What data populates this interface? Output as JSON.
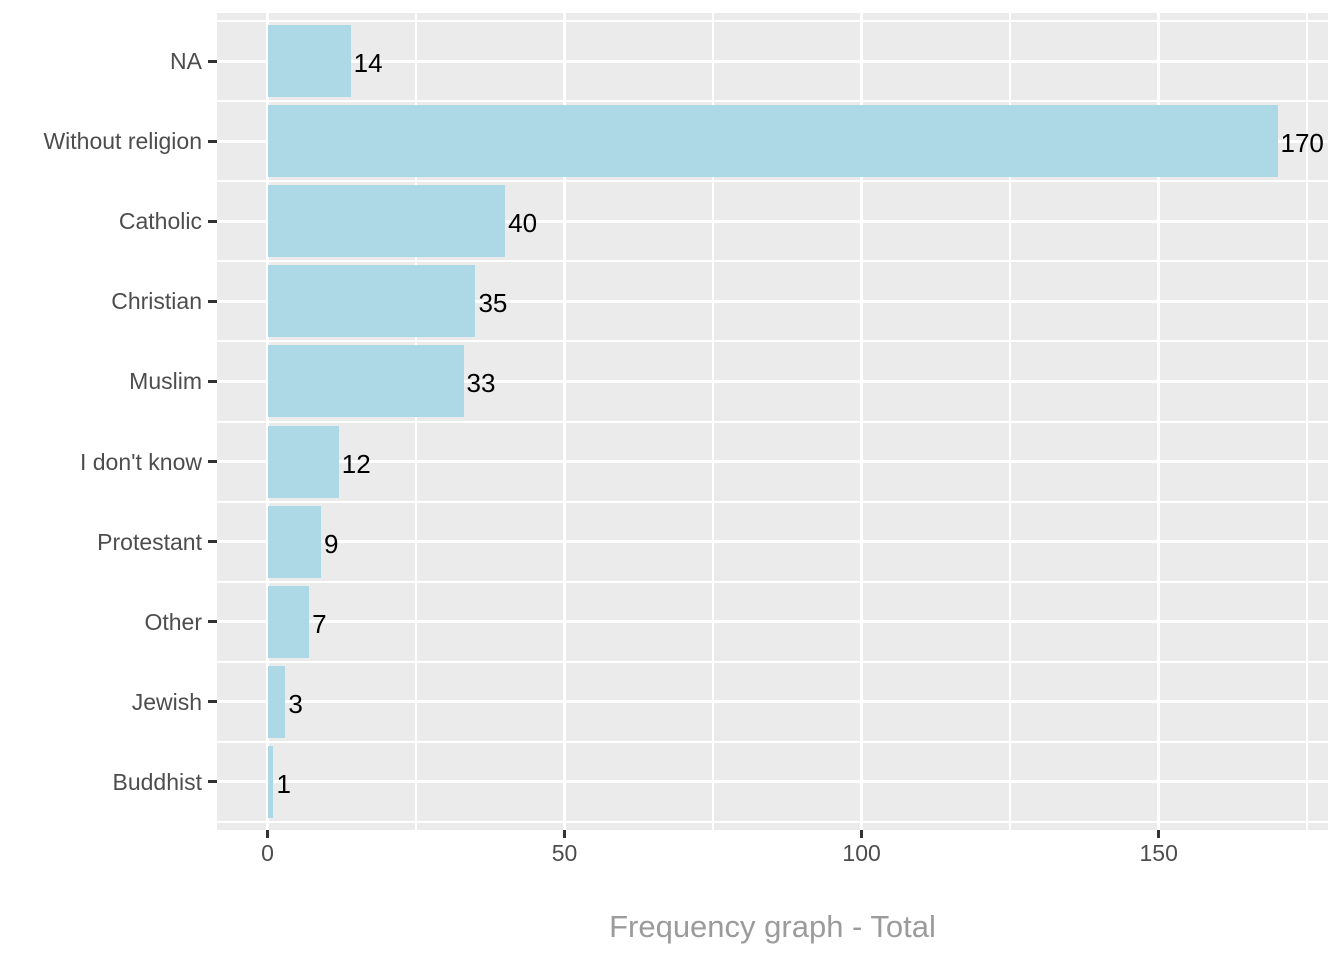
{
  "chart_data": {
    "type": "bar",
    "orientation": "horizontal",
    "title": "",
    "xlabel": "Frequency graph - Total",
    "ylabel": "",
    "categories": [
      "NA",
      "Without religion",
      "Catholic",
      "Christian",
      "Muslim",
      "I don't know",
      "Protestant",
      "Other",
      "Jewish",
      "Buddhist"
    ],
    "values": [
      14,
      170,
      40,
      35,
      33,
      12,
      9,
      7,
      3,
      1
    ],
    "value_labels": [
      "14",
      "170",
      "40",
      "35",
      "33",
      "12",
      "9",
      "7",
      "3",
      "1"
    ],
    "x_ticks": [
      0,
      50,
      100,
      150
    ],
    "x_tick_labels": [
      "0",
      "50",
      "100",
      "150"
    ],
    "x_minor_ticks": [
      25,
      75,
      125,
      175
    ],
    "xlim_expanded": [
      -8.5,
      178.5
    ],
    "legend_position": "none",
    "grid": "major-and-minor",
    "colors": {
      "bar_fill": "#ADD8E6",
      "panel_background": "#EBEBEB",
      "gridline": "#FFFFFF",
      "axis_text": "#4D4D4D",
      "value_text": "#000000",
      "axis_title_text": "#9B9B9B",
      "tick_mark": "#333333",
      "plot_background": "#FFFFFF"
    }
  }
}
